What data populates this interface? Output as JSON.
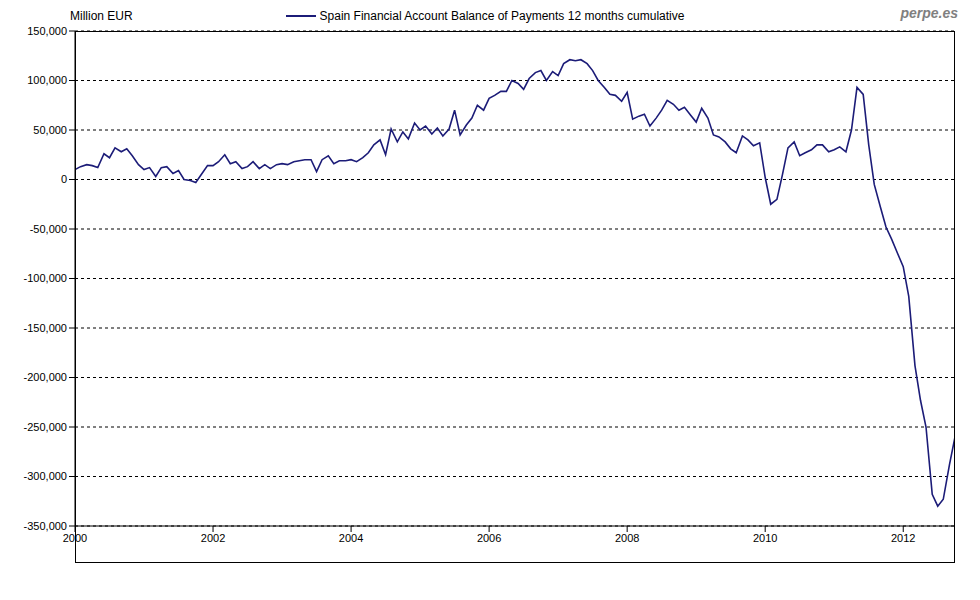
{
  "chart_data": {
    "type": "line",
    "y_label": "Million EUR",
    "annotations": [
      "perpe.es"
    ],
    "legend": "top",
    "grid": true,
    "x": [
      2000.0,
      2000.08,
      2000.17,
      2000.25,
      2000.33,
      2000.42,
      2000.5,
      2000.58,
      2000.67,
      2000.75,
      2000.83,
      2000.92,
      2001.0,
      2001.08,
      2001.17,
      2001.25,
      2001.33,
      2001.42,
      2001.5,
      2001.58,
      2001.67,
      2001.75,
      2001.83,
      2001.92,
      2002.0,
      2002.08,
      2002.17,
      2002.25,
      2002.33,
      2002.42,
      2002.5,
      2002.58,
      2002.67,
      2002.75,
      2002.83,
      2002.92,
      2003.0,
      2003.08,
      2003.17,
      2003.25,
      2003.33,
      2003.42,
      2003.5,
      2003.58,
      2003.67,
      2003.75,
      2003.83,
      2003.92,
      2004.0,
      2004.08,
      2004.17,
      2004.25,
      2004.33,
      2004.42,
      2004.5,
      2004.58,
      2004.67,
      2004.75,
      2004.83,
      2004.92,
      2005.0,
      2005.08,
      2005.17,
      2005.25,
      2005.33,
      2005.42,
      2005.5,
      2005.58,
      2005.67,
      2005.75,
      2005.83,
      2005.92,
      2006.0,
      2006.08,
      2006.17,
      2006.25,
      2006.33,
      2006.42,
      2006.5,
      2006.58,
      2006.67,
      2006.75,
      2006.83,
      2006.92,
      2007.0,
      2007.08,
      2007.17,
      2007.25,
      2007.33,
      2007.42,
      2007.5,
      2007.58,
      2007.67,
      2007.75,
      2007.83,
      2007.92,
      2008.0,
      2008.08,
      2008.17,
      2008.25,
      2008.33,
      2008.42,
      2008.5,
      2008.58,
      2008.67,
      2008.75,
      2008.83,
      2008.92,
      2009.0,
      2009.08,
      2009.17,
      2009.25,
      2009.33,
      2009.42,
      2009.5,
      2009.58,
      2009.67,
      2009.75,
      2009.83,
      2009.92,
      2010.0,
      2010.08,
      2010.17,
      2010.25,
      2010.33,
      2010.42,
      2010.5,
      2010.58,
      2010.67,
      2010.75,
      2010.83,
      2010.92,
      2011.0,
      2011.08,
      2011.17,
      2011.25,
      2011.33,
      2011.42,
      2011.5,
      2011.58,
      2011.67,
      2011.75,
      2011.83,
      2011.92,
      2012.0,
      2012.08,
      2012.17,
      2012.25,
      2012.33,
      2012.42,
      2012.5,
      2012.58,
      2012.67,
      2012.75
    ],
    "series": [
      {
        "name": "Spain Financial Account Balance of Payments 12 months cumulative",
        "color": "#1c1c78",
        "values": [
          10000,
          13000,
          15000,
          14000,
          12000,
          26000,
          22000,
          32000,
          28000,
          31000,
          24000,
          15000,
          10000,
          12000,
          3000,
          12000,
          13000,
          6000,
          9000,
          0,
          -1000,
          -3000,
          5000,
          14000,
          14000,
          18000,
          25000,
          16000,
          18000,
          11000,
          13000,
          18000,
          11000,
          15000,
          11000,
          15000,
          16000,
          15000,
          18000,
          19000,
          20000,
          20000,
          8000,
          20000,
          24000,
          16000,
          19000,
          19000,
          20000,
          18000,
          22000,
          27000,
          35000,
          40000,
          25000,
          51000,
          38000,
          48000,
          41000,
          57000,
          50000,
          54000,
          46000,
          52000,
          44000,
          51000,
          70000,
          45000,
          55000,
          62000,
          75000,
          70000,
          82000,
          85000,
          89000,
          89000,
          100000,
          97000,
          91000,
          102000,
          108000,
          110000,
          100000,
          109000,
          105000,
          117000,
          121000,
          120000,
          121000,
          117000,
          110000,
          100000,
          93000,
          86000,
          85000,
          79000,
          88000,
          61000,
          64000,
          66000,
          54000,
          62000,
          70000,
          80000,
          76000,
          70000,
          73000,
          65000,
          58000,
          72000,
          62000,
          45000,
          43000,
          38000,
          31000,
          27000,
          44000,
          40000,
          34000,
          37000,
          2000,
          -25000,
          -20000,
          5000,
          32000,
          38000,
          24000,
          27000,
          30000,
          35000,
          35000,
          28000,
          30000,
          33000,
          28000,
          50000,
          93000,
          86000,
          35000,
          -5000,
          -28000,
          -48000,
          -60000,
          -75000,
          -88000,
          -118000,
          -188000,
          -223000,
          -250000,
          -318000,
          -330000,
          -323000,
          -288000,
          -260000
        ]
      }
    ],
    "xlim": [
      2000,
      2012.75
    ],
    "xticks": [
      2000,
      2002,
      2004,
      2006,
      2008,
      2010,
      2012
    ],
    "ylim": [
      -350000,
      150000
    ],
    "yticks": [
      {
        "value": -350000,
        "label": "-350,000"
      },
      {
        "value": -300000,
        "label": "-300,000"
      },
      {
        "value": -250000,
        "label": "-250,000"
      },
      {
        "value": -200000,
        "label": "-200,000"
      },
      {
        "value": -150000,
        "label": "-150,000"
      },
      {
        "value": -100000,
        "label": "-100,000"
      },
      {
        "value": -50000,
        "label": "-50,000"
      },
      0,
      {
        "value": 50000,
        "label": "50,000"
      },
      {
        "value": 100000,
        "label": "100,000"
      },
      {
        "value": 150000,
        "label": "150,000"
      }
    ]
  }
}
